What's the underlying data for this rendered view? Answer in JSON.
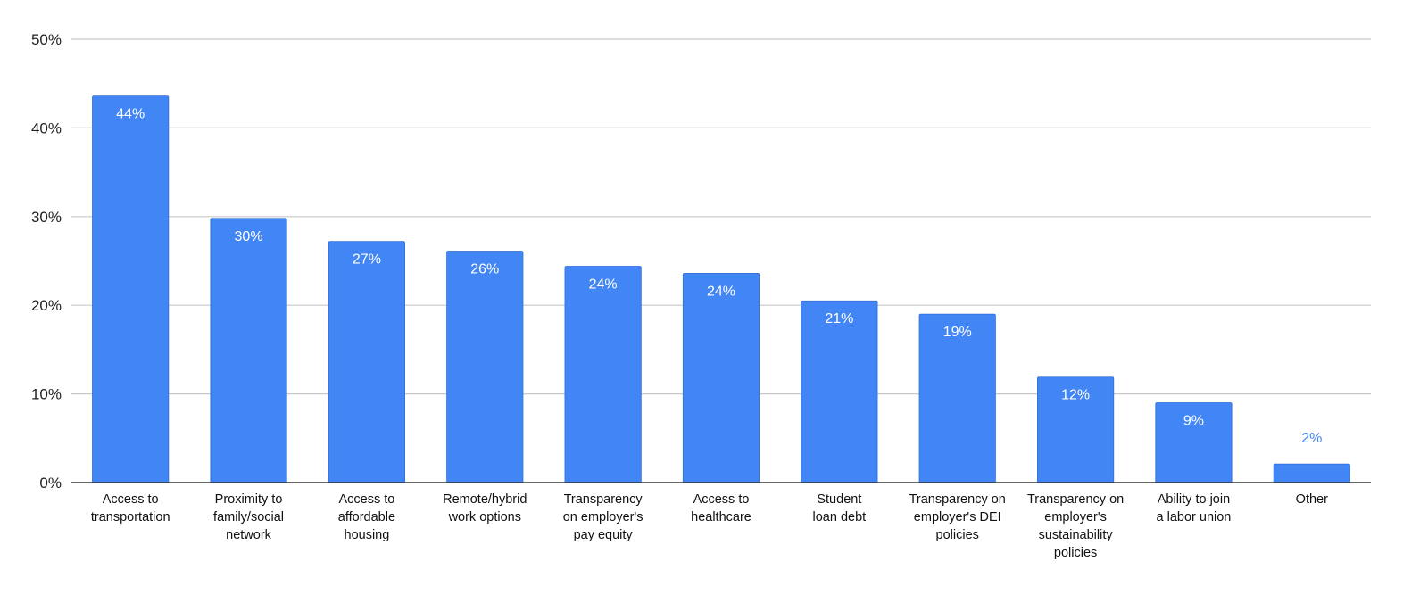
{
  "chart_data": {
    "type": "bar",
    "title": "",
    "xlabel": "",
    "ylabel": "",
    "ylim": [
      0,
      50
    ],
    "yticks": [
      "0%",
      "10%",
      "20%",
      "30%",
      "40%",
      "50%"
    ],
    "grid": true,
    "legend": "none",
    "bar_color": "#4285F4",
    "outside_label_color": "#4285F4",
    "inside_label_color": "#ffffff",
    "categories": [
      [
        "Access to",
        "transportation"
      ],
      [
        "Proximity to",
        "family/social",
        "network"
      ],
      [
        "Access to",
        "affordable",
        "housing"
      ],
      [
        "Remote/hybrid",
        "work options"
      ],
      [
        "Transparency",
        "on employer's",
        "pay equity"
      ],
      [
        "Access to",
        "healthcare"
      ],
      [
        "Student",
        "loan debt"
      ],
      [
        "Transparency on",
        "employer's DEI",
        "policies"
      ],
      [
        "Transparency on",
        "employer's",
        "sustainability",
        "policies"
      ],
      [
        "Ability to join",
        "a labor union"
      ],
      [
        "Other"
      ]
    ],
    "values": [
      43.6,
      29.8,
      27.2,
      26.1,
      24.4,
      23.6,
      20.5,
      19.0,
      11.9,
      9.0,
      2.1
    ],
    "value_labels": [
      "44%",
      "30%",
      "27%",
      "26%",
      "24%",
      "24%",
      "21%",
      "19%",
      "12%",
      "9%",
      "2%"
    ]
  }
}
